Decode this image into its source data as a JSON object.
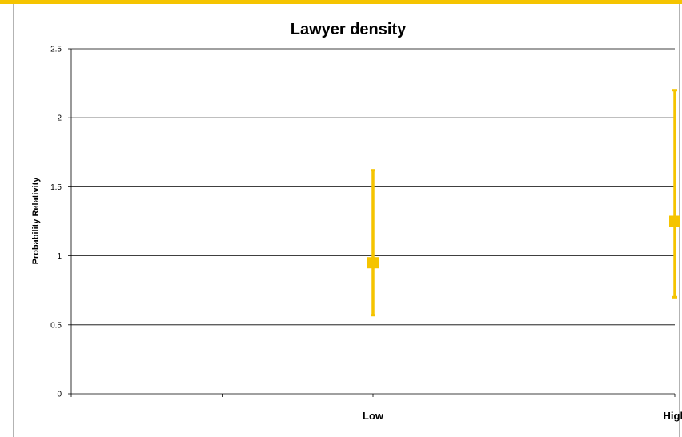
{
  "colors": {
    "top_bar": "#f5c400",
    "frame": "#9a9a9a",
    "marker": "#f5c400",
    "gridline": "#000000"
  },
  "chart_data": {
    "type": "scatter",
    "title": "Lawyer density",
    "xlabel": "",
    "ylabel": "Probability Relativity",
    "categories": [
      "Low",
      "High"
    ],
    "series": [
      {
        "values": [
          0.95,
          1.25
        ],
        "error_low": [
          0.57,
          0.7
        ],
        "error_high": [
          1.62,
          2.2
        ]
      }
    ],
    "ylim": [
      0,
      2.5
    ],
    "y_ticks": [
      "0",
      "0.5",
      "1",
      "1.5",
      "2",
      "2.5"
    ],
    "y_tick_values": [
      0,
      0.5,
      1,
      1.5,
      2,
      2.5
    ],
    "grid": true,
    "legend": "none"
  }
}
